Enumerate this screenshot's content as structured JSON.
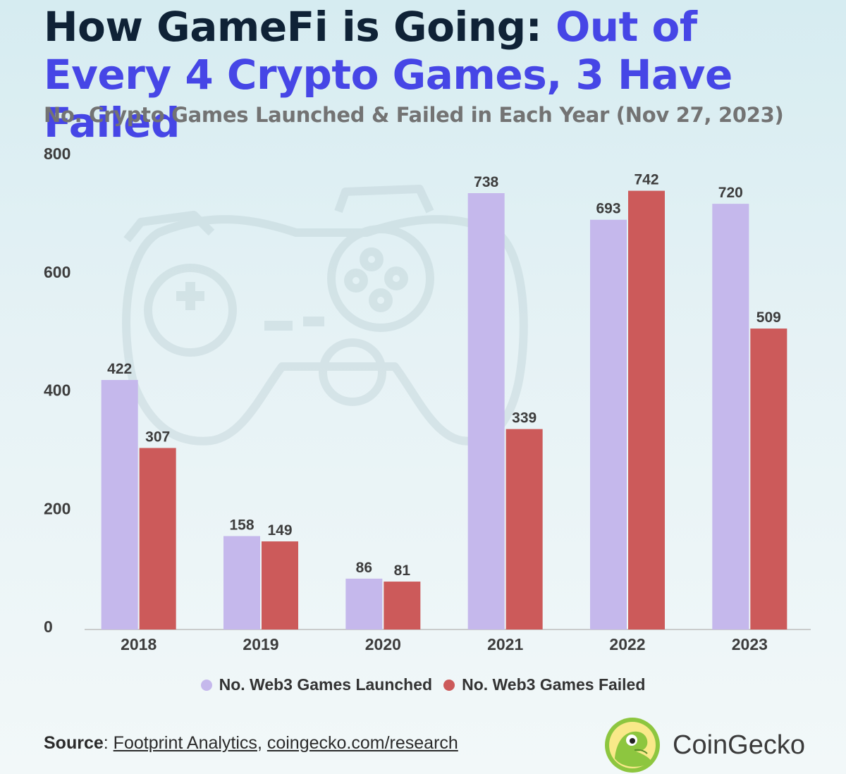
{
  "title": {
    "main": "How GameFi is Going: ",
    "accent": "Out of Every 4 Crypto Games, 3 Have Failed"
  },
  "subtitle": "No. Crypto Games Launched & Failed in Each Year (Nov 27, 2023)",
  "chart_data": {
    "type": "bar",
    "categories": [
      "2018",
      "2019",
      "2020",
      "2021",
      "2022",
      "2023"
    ],
    "series": [
      {
        "name": "No. Web3 Games Launched",
        "values": [
          422,
          158,
          86,
          738,
          693,
          720
        ],
        "color": "#c5b8ec"
      },
      {
        "name": "No. Web3 Games Failed",
        "values": [
          307,
          149,
          81,
          339,
          742,
          509
        ],
        "color": "#cc5a5a"
      }
    ],
    "yticks": [
      0,
      200,
      400,
      600,
      800
    ],
    "ylim": [
      0,
      800
    ],
    "grid": false,
    "legend_position": "bottom-center",
    "data_labels": true
  },
  "legend": [
    {
      "label": "No. Web3 Games Launched",
      "color": "#c5b8ec"
    },
    {
      "label": "No. Web3 Games Failed",
      "color": "#cc5a5a"
    }
  ],
  "source": {
    "label": "Source",
    "link1": "Footprint Analytics",
    "link2": "coingecko.com/research"
  },
  "brand": {
    "name": "CoinGecko",
    "logo_icon": "coingecko-logo-icon",
    "logo_color": "#8dc63f"
  },
  "background_icon": "gamepad-icon"
}
